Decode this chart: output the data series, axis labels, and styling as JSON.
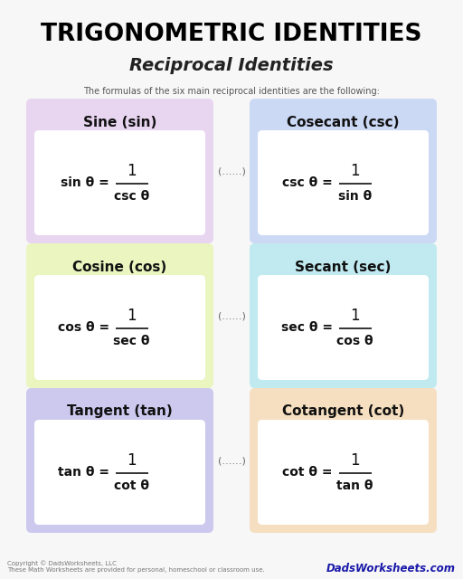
{
  "title": "TRIGONOMETRIC IDENTITIES",
  "subtitle": "Reciprocal Identities",
  "description": "The formulas of the six main reciprocal identities are the following:",
  "background_color": "#f7f7f7",
  "cards": [
    {
      "label": "Sine (sin)",
      "formula_left": "sin θ = ",
      "numerator": "1",
      "denominator": "csc θ",
      "bg_color": "#e8d5f0",
      "row": 0,
      "col": 0
    },
    {
      "label": "Cosecant (csc)",
      "formula_left": "csc θ = ",
      "numerator": "1",
      "denominator": "sin θ",
      "bg_color": "#ccd9f5",
      "row": 0,
      "col": 1
    },
    {
      "label": "Cosine (cos)",
      "formula_left": "cos θ = ",
      "numerator": "1",
      "denominator": "sec θ",
      "bg_color": "#eaf5c0",
      "row": 1,
      "col": 0
    },
    {
      "label": "Secant (sec)",
      "formula_left": "sec θ = ",
      "numerator": "1",
      "denominator": "cos θ",
      "bg_color": "#c0eaf0",
      "row": 1,
      "col": 1
    },
    {
      "label": "Tangent (tan)",
      "formula_left": "tan θ = ",
      "numerator": "1",
      "denominator": "cot θ",
      "bg_color": "#ccc8ee",
      "row": 2,
      "col": 0
    },
    {
      "label": "Cotangent (cot)",
      "formula_left": "cot θ = ",
      "numerator": "1",
      "denominator": "tan θ",
      "bg_color": "#f5dfc0",
      "row": 2,
      "col": 1
    }
  ],
  "copyright_text": "Copyright © DadsWorksheets, LLC\nThese Math Worksheets are provided for personal, homeschool or classroom use.",
  "watermark_text": "DadsWorksheets.com"
}
